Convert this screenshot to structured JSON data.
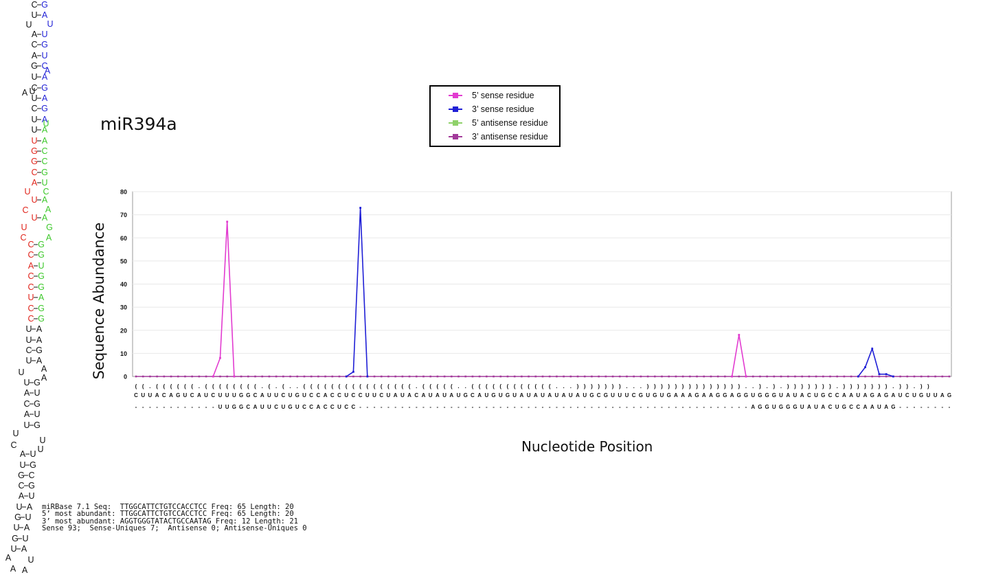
{
  "title": "miR394a",
  "legend": [
    {
      "label": "5’ sense residue",
      "color": "#e23bd0"
    },
    {
      "label": "3’ sense residue",
      "color": "#1f1fd6"
    },
    {
      "label": "5’ antisense residue",
      "color": "#8fd16a"
    },
    {
      "label": "3’ antisense residue",
      "color": "#a23a9a"
    }
  ],
  "hairpin_pairs": [
    [
      "C",
      "G"
    ],
    [
      "U",
      "A"
    ],
    [
      "A",
      "U"
    ],
    [
      "C",
      "G"
    ],
    [
      "A",
      "U"
    ],
    [
      "G",
      "C"
    ],
    [
      "U",
      "A"
    ],
    [
      "C",
      "G"
    ],
    [
      "U",
      "A"
    ],
    [
      "C",
      "G"
    ],
    [
      "U",
      "A"
    ],
    [
      "U",
      "A"
    ],
    [
      "U",
      "A"
    ],
    [
      "G",
      "C"
    ],
    [
      "G",
      "C"
    ],
    [
      "C",
      "G"
    ],
    [
      "A",
      "U"
    ],
    [
      "U",
      "A"
    ],
    [
      "U",
      "A"
    ],
    [
      "C",
      "G"
    ],
    [
      "C",
      "G"
    ],
    [
      "A",
      "U"
    ],
    [
      "C",
      "G"
    ],
    [
      "C",
      "G"
    ],
    [
      "U",
      "A"
    ],
    [
      "C",
      "G"
    ],
    [
      "C",
      "G"
    ],
    [
      "U",
      "A"
    ],
    [
      "U",
      "A"
    ],
    [
      "C",
      "G"
    ],
    [
      "U",
      "A"
    ],
    [
      "U",
      "G"
    ],
    [
      "A",
      "U"
    ],
    [
      "C",
      "G"
    ],
    [
      "A",
      "U"
    ],
    [
      "U",
      "G"
    ],
    [
      "A",
      "U"
    ],
    [
      "U",
      "G"
    ],
    [
      "G",
      "C"
    ],
    [
      "C",
      "G"
    ],
    [
      "A",
      "U"
    ],
    [
      "U",
      "A"
    ],
    [
      "G",
      "U"
    ],
    [
      "U",
      "A"
    ],
    [
      "G",
      "U"
    ],
    [
      "U",
      "A"
    ]
  ],
  "hairpin_loose": [
    "U",
    "U",
    "A",
    "U",
    "U",
    "C",
    "U",
    "A",
    "C",
    "G",
    "U",
    "A",
    "C",
    "U",
    "A",
    "A",
    "U",
    "U",
    "C",
    "U",
    "A",
    "U",
    "A"
  ],
  "chart_data": {
    "type": "line",
    "ylabel": "Sequence Abundance",
    "xlabel": "Nucleotide Position",
    "ylim": [
      0,
      80
    ],
    "yticks": [
      0,
      10,
      20,
      30,
      40,
      50,
      60,
      70,
      80
    ],
    "x_count": 117,
    "structure": "((.((((((.((((((((.(.(..((((((((((((((((.(((((..((((((((((((...)))))))...))))))))))))))..).).))))))).))))))).)).))",
    "sequence": "CUUACAGUCAUCUUUGGCAUUCUGUCCACCUCCUUCUAUACAUAUAUGCAUGUGUAUAUAUAUAUGCGUUUCGUGUGAAAGAAGGAGGUGGGUAUACUGCCAAUAGAGAUCUGUUAG",
    "reads": "------------UUGGCAUUCUGUCCACCUCC--------------------------------------------------------AGGUGGGUAUACUGCCAAUAG-----------",
    "series": [
      {
        "name": "5’ sense residue",
        "color": "#e23bd0",
        "points": [
          [
            11,
            0
          ],
          [
            12,
            8
          ],
          [
            13,
            67
          ],
          [
            14,
            0
          ],
          [
            85,
            0
          ],
          [
            86,
            18
          ],
          [
            87,
            0
          ]
        ]
      },
      {
        "name": "3’ sense residue",
        "color": "#1f1fd6",
        "points": [
          [
            30,
            0
          ],
          [
            31,
            2
          ],
          [
            32,
            73
          ],
          [
            33,
            0
          ],
          [
            103,
            0
          ],
          [
            104,
            4
          ],
          [
            105,
            12
          ],
          [
            106,
            1
          ],
          [
            107,
            1
          ],
          [
            108,
            0
          ]
        ]
      },
      {
        "name": "5’ antisense residue",
        "color": "#8fd16a",
        "points": []
      },
      {
        "name": "3’ antisense residue",
        "color": "#a23a9a",
        "points": []
      }
    ]
  },
  "info_lines": [
    "miRBase 7.1 Seq:  TTGGCATTCTGTCCACCTCC Freq: 65 Length: 20",
    "5’ most abundant: TTGGCATTCTGTCCACCTCC Freq: 65 Length: 20",
    "3’ most abundant: AGGTGGGTATACTGCCAATAG Freq: 12 Length: 21",
    "Sense 93;  Sense-Uniques 7;  Antisense 0; Antisense-Uniques 0"
  ]
}
